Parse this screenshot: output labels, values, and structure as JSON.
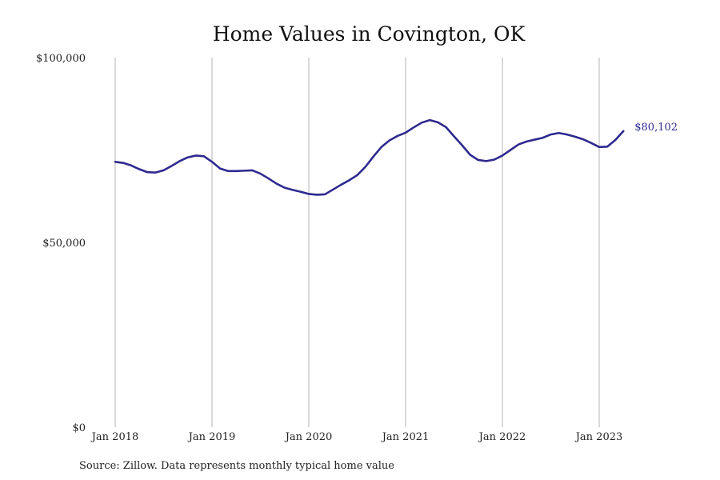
{
  "chart_data": {
    "type": "line",
    "title": "Home Values in Covington, OK",
    "source": "Source: Zillow. Data represents monthly typical home value",
    "ylim": [
      0,
      100000
    ],
    "y_ticks": [
      0,
      50000,
      100000
    ],
    "y_tick_labels": [
      "$0",
      "$50,000",
      "$100,000"
    ],
    "x_ticks": [
      "2018-01",
      "2019-01",
      "2020-01",
      "2021-01",
      "2022-01",
      "2023-01"
    ],
    "x_tick_labels": [
      "Jan 2018",
      "Jan 2019",
      "Jan 2020",
      "Jan 2021",
      "Jan 2022",
      "Jan 2023"
    ],
    "grid": {
      "vertical": true,
      "horizontal": false
    },
    "legend": "none",
    "end_label": "$80,102",
    "color": "#2e2a8f",
    "series": [
      {
        "x": [
          "2018-01",
          "2018-02",
          "2018-03",
          "2018-04",
          "2018-05",
          "2018-06",
          "2018-07",
          "2018-08",
          "2018-09",
          "2018-10",
          "2018-11",
          "2018-12",
          "2019-01",
          "2019-02",
          "2019-03",
          "2019-04",
          "2019-05",
          "2019-06",
          "2019-07",
          "2019-08",
          "2019-09",
          "2019-10",
          "2019-11",
          "2019-12",
          "2020-01",
          "2020-02",
          "2020-03",
          "2020-04",
          "2020-05",
          "2020-06",
          "2020-07",
          "2020-08",
          "2020-09",
          "2020-10",
          "2020-11",
          "2020-12",
          "2021-01",
          "2021-02",
          "2021-03",
          "2021-04",
          "2021-05",
          "2021-06",
          "2021-07",
          "2021-08",
          "2021-09",
          "2021-10",
          "2021-11",
          "2021-12",
          "2022-01",
          "2022-02",
          "2022-03",
          "2022-04",
          "2022-05",
          "2022-06",
          "2022-07",
          "2022-08",
          "2022-09",
          "2022-10",
          "2022-11",
          "2022-12",
          "2023-01",
          "2023-02",
          "2023-03",
          "2023-04"
        ],
        "values": [
          71800,
          71500,
          70800,
          69800,
          69000,
          68900,
          69500,
          70700,
          72000,
          73000,
          73500,
          73300,
          71800,
          70000,
          69300,
          69300,
          69400,
          69500,
          68600,
          67300,
          65900,
          64800,
          64200,
          63700,
          63100,
          62900,
          63000,
          64300,
          65600,
          66800,
          68200,
          70400,
          73200,
          75800,
          77600,
          78800,
          79700,
          81100,
          82400,
          83100,
          82500,
          81200,
          78700,
          76300,
          73700,
          72300,
          72000,
          72400,
          73500,
          75000,
          76500,
          77300,
          77800,
          78300,
          79200,
          79600,
          79200,
          78600,
          77900,
          76900,
          75800,
          75900,
          77700,
          80102
        ]
      }
    ]
  }
}
